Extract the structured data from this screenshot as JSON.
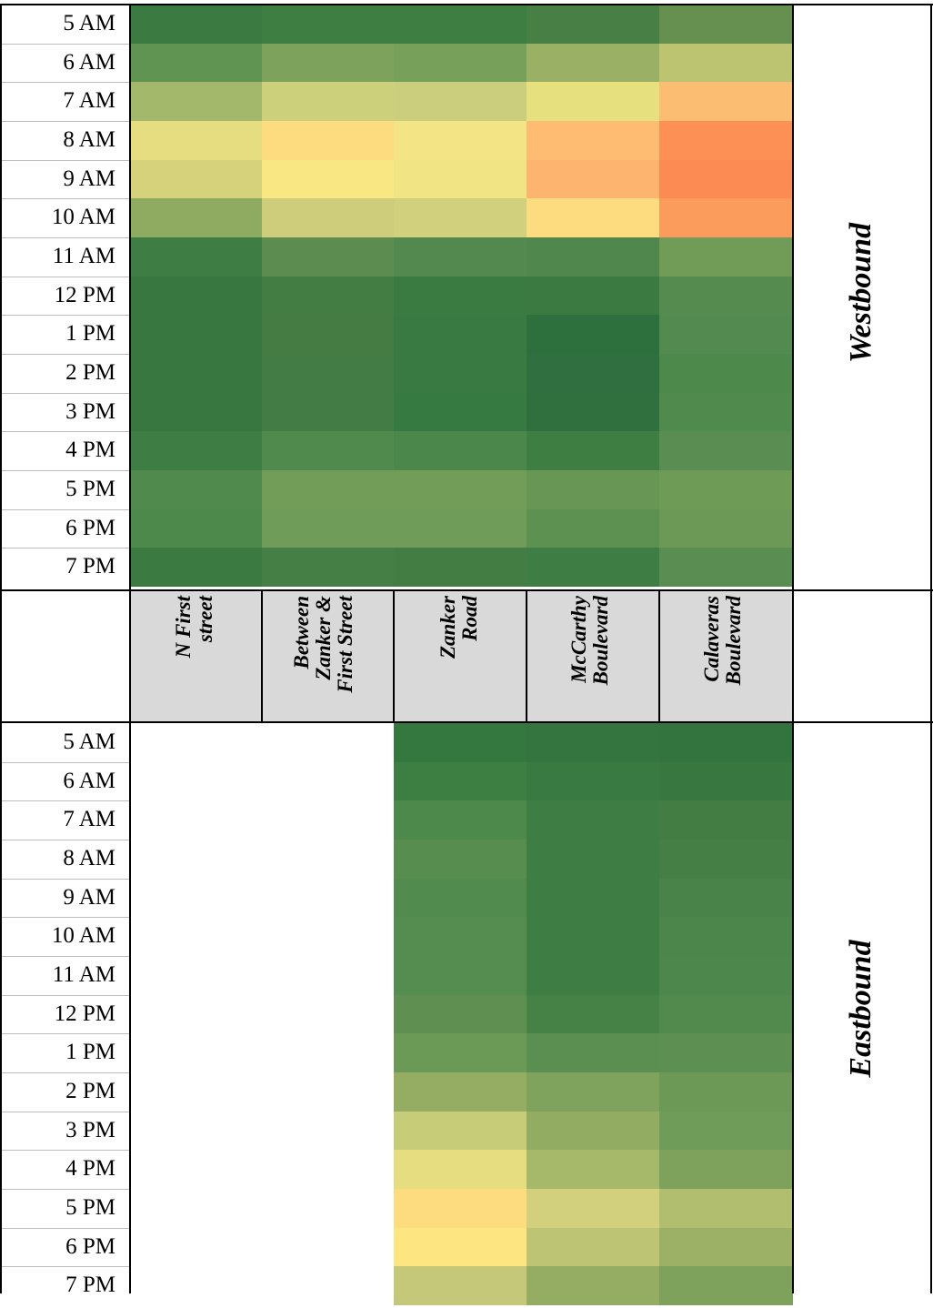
{
  "chart_data": [
    {
      "type": "heatmap",
      "panel": "Westbound",
      "rows": [
        "5 AM",
        "6 AM",
        "7 AM",
        "8 AM",
        "9 AM",
        "10 AM",
        "11 AM",
        "12 PM",
        "1 PM",
        "2 PM",
        "3 PM",
        "4 PM",
        "5 PM",
        "6 PM",
        "7 PM"
      ],
      "columns": [
        "N First street",
        "Between Zanker & First Street",
        "Zanker Road",
        "McCarthy Boulevard",
        "Calaveras Boulevard"
      ],
      "cell_colors": [
        [
          "#3b7b42",
          "#3f7e43",
          "#3f7e43",
          "#477f45",
          "#66904f"
        ],
        [
          "#609452",
          "#7da25b",
          "#77a05a",
          "#99b065",
          "#bcc472"
        ],
        [
          "#a3b86a",
          "#ccd07b",
          "#cbce7c",
          "#e6e07f",
          "#fbbd72"
        ],
        [
          "#e5dd80",
          "#fddc80",
          "#f3e585",
          "#fdbc72",
          "#fc9055"
        ],
        [
          "#d6d27c",
          "#f8e782",
          "#f1e484",
          "#fdb46e",
          "#fb8b52"
        ],
        [
          "#8fab62",
          "#cdcd7c",
          "#d1d07c",
          "#fddc80",
          "#fb9c5d"
        ],
        [
          "#3e7d43",
          "#5d8c50",
          "#53884e",
          "#4f874c",
          "#719c58"
        ],
        [
          "#38773f",
          "#437d44",
          "#3a7b42",
          "#3b7a41",
          "#558b4f"
        ],
        [
          "#38773f",
          "#447c44",
          "#387a41",
          "#2e6f3e",
          "#538a4f"
        ],
        [
          "#38773f",
          "#437c44",
          "#387a41",
          "#306f3f",
          "#4e894c"
        ],
        [
          "#38773f",
          "#437c44",
          "#377a41",
          "#30703f",
          "#518a4d"
        ],
        [
          "#3e7d43",
          "#518a4d",
          "#4b874b",
          "#3f7e43",
          "#5a8d51"
        ],
        [
          "#508a4d",
          "#719d58",
          "#719d58",
          "#689755",
          "#6e9b56"
        ],
        [
          "#4e894c",
          "#6f9c58",
          "#6f9c58",
          "#5d9152",
          "#6c9a56"
        ],
        [
          "#3b7b42",
          "#467f45",
          "#437d44",
          "#3e7d43",
          "#5a8d51"
        ]
      ]
    },
    {
      "type": "heatmap",
      "panel": "Eastbound",
      "rows": [
        "5 AM",
        "6 AM",
        "7 AM",
        "8 AM",
        "9 AM",
        "10 AM",
        "11 AM",
        "12 PM",
        "1 PM",
        "2 PM",
        "3 PM",
        "4 PM",
        "5 PM",
        "6 PM",
        "7 PM"
      ],
      "columns": [
        "N First street",
        "Between Zanker & First Street",
        "Zanker Road",
        "McCarthy Boulevard",
        "Calaveras Boulevard"
      ],
      "cell_colors": [
        [
          null,
          null,
          "#34773f",
          "#34753f",
          "#33733e"
        ],
        [
          null,
          null,
          "#3d7e43",
          "#387a41",
          "#38773f"
        ],
        [
          null,
          null,
          "#4e894c",
          "#3e7d43",
          "#437d44"
        ],
        [
          null,
          null,
          "#588d50",
          "#3e7d43",
          "#467f45"
        ],
        [
          null,
          null,
          "#528b4e",
          "#3e7d43",
          "#4a834a"
        ],
        [
          null,
          null,
          "#558c4f",
          "#3e7d43",
          "#4d864b"
        ],
        [
          null,
          null,
          "#558c4f",
          "#3e7d43",
          "#4e874c"
        ],
        [
          null,
          null,
          "#5f9052",
          "#468245",
          "#528a4e"
        ],
        [
          null,
          null,
          "#6a9a56",
          "#5a8f51",
          "#5e8f52"
        ],
        [
          null,
          null,
          "#94ad62",
          "#7fa25c",
          "#6c9a56"
        ],
        [
          null,
          null,
          "#c7cc79",
          "#92ad62",
          "#6f9c58"
        ],
        [
          null,
          null,
          "#e6dd80",
          "#a6b86a",
          "#7ea25c"
        ],
        [
          null,
          null,
          "#fddc80",
          "#d2d07d",
          "#b1bd6f"
        ],
        [
          null,
          null,
          "#fde581",
          "#bdc473",
          "#9db166"
        ],
        [
          null,
          null,
          "#c4c878",
          "#94ad63",
          "#7ea25c"
        ]
      ]
    }
  ],
  "headers": {
    "col1": "N First\nstreet",
    "col2": "Between\nZanker &\nFirst Street",
    "col3": "Zanker\nRoad",
    "col4": "McCarthy\nBoulevard",
    "col5": "Calaveras\nBoulevard",
    "west": "Westbound",
    "east": "Eastbound"
  },
  "colors": {
    "header_bg": "#d9d9d9",
    "border": "#000000",
    "row_separator": "#bdbdbd"
  }
}
